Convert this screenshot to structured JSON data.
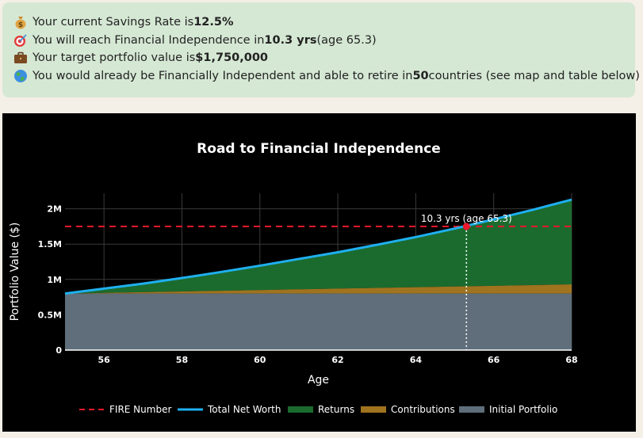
{
  "summary": {
    "lines": [
      {
        "icon": "money-bag-icon",
        "pre": "Your current Savings Rate is ",
        "strong": "12.5%",
        "post": ""
      },
      {
        "icon": "target-icon",
        "pre": "You will reach Financial Independence in ",
        "strong": "10.3 yrs",
        "post": " (age 65.3)"
      },
      {
        "icon": "briefcase-icon",
        "pre": "Your target portfolio value is ",
        "strong": "$1,750,000",
        "post": ""
      },
      {
        "icon": "globe-icon",
        "pre": "You would already be Financially Independent and able to retire in ",
        "strong": "50",
        "post": " countries (see map and table below)"
      }
    ]
  },
  "colors": {
    "fire": "#e8192c",
    "networth": "#1fb0f0",
    "returns": "#1b6b2e",
    "contributions": "#a0731f",
    "initial": "#5f6e7a",
    "panel": "#d5e8d4"
  },
  "chart_data": {
    "type": "area",
    "title": "Road to Financial Independence",
    "xlabel": "Age",
    "ylabel": "Portfolio Value ($)",
    "xlim": [
      55,
      68
    ],
    "ylim": [
      0,
      2220000
    ],
    "xticks": [
      56,
      58,
      60,
      62,
      64,
      66,
      68
    ],
    "xticklabels": [
      "56",
      "58",
      "60",
      "62",
      "64",
      "66",
      "68"
    ],
    "yticks": [
      0,
      500000,
      1000000,
      1500000,
      2000000
    ],
    "yticklabels": [
      "0",
      "0.5M",
      "1M",
      "1.5M",
      "2M"
    ],
    "x": [
      55,
      56,
      57,
      58,
      59,
      60,
      61,
      62,
      63,
      64,
      65,
      66,
      67,
      68
    ],
    "series": [
      {
        "name": "Initial Portfolio",
        "values": [
          800000,
          800000,
          800000,
          800000,
          800000,
          800000,
          800000,
          800000,
          800000,
          800000,
          800000,
          800000,
          800000,
          800000
        ]
      },
      {
        "name": "Contributions",
        "values": [
          0,
          10000,
          20000,
          30000,
          40000,
          50000,
          60000,
          70000,
          80000,
          90000,
          100000,
          110000,
          120000,
          130000
        ]
      },
      {
        "name": "Returns",
        "values": [
          0,
          60000,
          120000,
          190000,
          265000,
          345000,
          430000,
          515000,
          610000,
          710000,
          820000,
          940000,
          1065000,
          1200000
        ]
      },
      {
        "name": "Total Net Worth",
        "values": [
          800000,
          870000,
          940000,
          1020000,
          1105000,
          1195000,
          1290000,
          1385000,
          1490000,
          1600000,
          1720000,
          1850000,
          1985000,
          2130000
        ]
      }
    ],
    "fire_number": 1750000,
    "annotation": {
      "text": "10.3 yrs (age 65.3)",
      "x": 65.3,
      "y": 1750000
    },
    "legend": [
      "FIRE Number",
      "Total Net Worth",
      "Returns",
      "Contributions",
      "Initial Portfolio"
    ],
    "legend_position": "bottom"
  }
}
